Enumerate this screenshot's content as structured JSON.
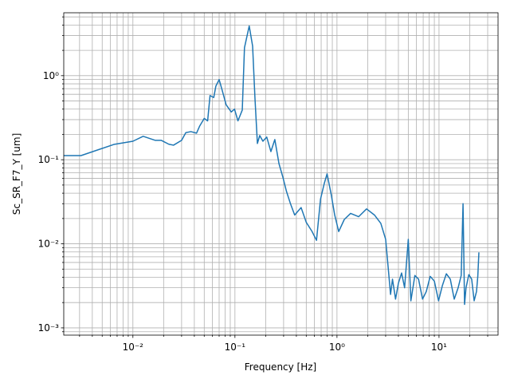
{
  "chart_data": {
    "type": "line",
    "xlabel": "Frequency [Hz]",
    "ylabel": "Sc_SR_F7_Y [um]",
    "xscale": "log",
    "yscale": "log",
    "grid": "both",
    "xlim": [
      0.0021,
      37.9
    ],
    "ylim": [
      0.00082,
      5.6
    ],
    "xticks": [
      {
        "value": 0.01,
        "label": "10⁻²"
      },
      {
        "value": 0.1,
        "label": "10⁻¹"
      },
      {
        "value": 1,
        "label": "10⁰"
      },
      {
        "value": 10,
        "label": "10¹"
      }
    ],
    "yticks": [
      {
        "value": 0.001,
        "label": "10⁻³"
      },
      {
        "value": 0.01,
        "label": "10⁻²"
      },
      {
        "value": 0.1,
        "label": "10⁻¹"
      },
      {
        "value": 1,
        "label": "10⁰"
      }
    ],
    "xminor": [
      0.003,
      0.004,
      0.005,
      0.006,
      0.007,
      0.008,
      0.009,
      0.02,
      0.03,
      0.04,
      0.05,
      0.06,
      0.07,
      0.08,
      0.09,
      0.2,
      0.3,
      0.4,
      0.5,
      0.6,
      0.7,
      0.8,
      0.9,
      2,
      3,
      4,
      5,
      6,
      7,
      8,
      9,
      20,
      30
    ],
    "yminor": [
      0.0009,
      0.002,
      0.003,
      0.004,
      0.005,
      0.006,
      0.007,
      0.008,
      0.009,
      0.02,
      0.03,
      0.04,
      0.05,
      0.06,
      0.07,
      0.08,
      0.09,
      0.2,
      0.3,
      0.4,
      0.5,
      0.6,
      0.7,
      0.8,
      0.9,
      2,
      3,
      4,
      5
    ],
    "series": [
      {
        "name": "Sc_SR_F7_Y",
        "color": "#1f77b4",
        "x": [
          0.0021,
          0.0031,
          0.0065,
          0.01,
          0.0126,
          0.0166,
          0.019,
          0.0225,
          0.025,
          0.03,
          0.033,
          0.037,
          0.042,
          0.045,
          0.05,
          0.054,
          0.057,
          0.062,
          0.065,
          0.07,
          0.075,
          0.082,
          0.092,
          0.099,
          0.107,
          0.118,
          0.124,
          0.138,
          0.149,
          0.157,
          0.166,
          0.175,
          0.188,
          0.205,
          0.225,
          0.246,
          0.27,
          0.295,
          0.32,
          0.35,
          0.385,
          0.445,
          0.5,
          0.57,
          0.63,
          0.69,
          0.75,
          0.8,
          0.88,
          0.95,
          1.04,
          1.18,
          1.36,
          1.63,
          1.95,
          2.33,
          2.69,
          3.0,
          3.2,
          3.35,
          3.5,
          3.75,
          4.0,
          4.3,
          4.6,
          5.0,
          5.3,
          5.8,
          6.3,
          6.9,
          7.5,
          8.2,
          9.0,
          9.9,
          10.8,
          11.8,
          12.9,
          14.1,
          15.4,
          16.5,
          17.2,
          17.8,
          18.4,
          19.6,
          20.9,
          22.1,
          23.3,
          24.0,
          24.6
        ],
        "values": [
          0.112,
          0.112,
          0.152,
          0.166,
          0.19,
          0.17,
          0.17,
          0.153,
          0.149,
          0.17,
          0.21,
          0.216,
          0.207,
          0.25,
          0.31,
          0.29,
          0.58,
          0.55,
          0.75,
          0.9,
          0.67,
          0.45,
          0.37,
          0.4,
          0.29,
          0.39,
          2.15,
          3.9,
          2.25,
          0.55,
          0.156,
          0.194,
          0.166,
          0.186,
          0.125,
          0.174,
          0.09,
          0.062,
          0.042,
          0.03,
          0.022,
          0.027,
          0.018,
          0.014,
          0.011,
          0.034,
          0.052,
          0.068,
          0.038,
          0.022,
          0.014,
          0.0195,
          0.023,
          0.021,
          0.026,
          0.022,
          0.0175,
          0.0113,
          0.0047,
          0.0025,
          0.0038,
          0.0022,
          0.0034,
          0.0045,
          0.003,
          0.0113,
          0.0021,
          0.0042,
          0.0038,
          0.0022,
          0.0027,
          0.0041,
          0.0036,
          0.0021,
          0.0032,
          0.0044,
          0.0038,
          0.0022,
          0.003,
          0.0042,
          0.03,
          0.0019,
          0.003,
          0.0043,
          0.0038,
          0.0021,
          0.0027,
          0.0041,
          0.0079
        ]
      }
    ]
  }
}
